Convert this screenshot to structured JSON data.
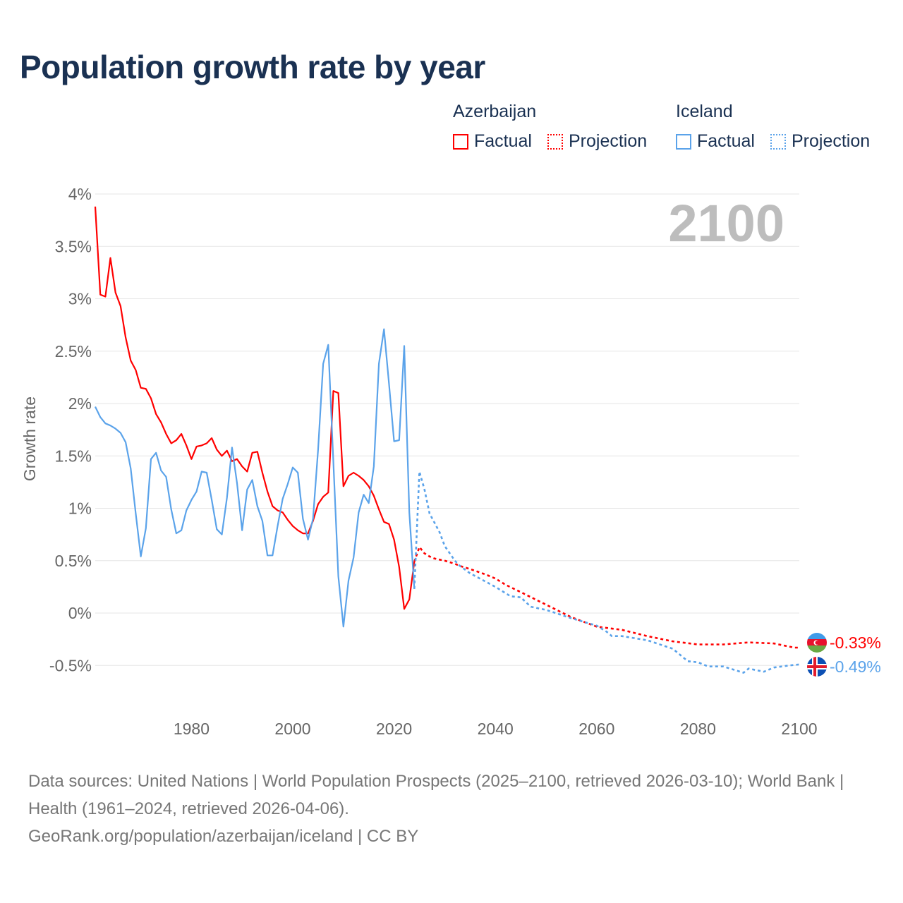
{
  "title": "Population growth rate by year",
  "legend": {
    "groups": [
      {
        "name": "Azerbaijan",
        "factual": "Factual",
        "projection": "Projection",
        "color": "#ff0000"
      },
      {
        "name": "Iceland",
        "factual": "Factual",
        "projection": "Projection",
        "color": "#5ba3ea"
      }
    ]
  },
  "year_label": "2100",
  "footer": {
    "sources": "Data sources: United Nations | World Population Prospects (2025–2100, retrieved 2026-03-10); World Bank | Health (1961–2024, retrieved 2026-04-06).",
    "credit": "GeoRank.org/population/azerbaijan/iceland | CC BY"
  },
  "chart_data": {
    "type": "line",
    "title": "Population growth rate by year",
    "xlabel": "",
    "ylabel": "Growth rate",
    "xlim": [
      1961,
      2100
    ],
    "ylim": [
      -0.85,
      4.1
    ],
    "x_ticks": [
      1980,
      2000,
      2020,
      2040,
      2060,
      2080,
      2100
    ],
    "y_ticks": [
      {
        "v": 4,
        "label": "4%"
      },
      {
        "v": 3.5,
        "label": "3.5%"
      },
      {
        "v": 3,
        "label": "3%"
      },
      {
        "v": 2.5,
        "label": "2.5%"
      },
      {
        "v": 2,
        "label": "2%"
      },
      {
        "v": 1.5,
        "label": "1.5%"
      },
      {
        "v": 1,
        "label": "1%"
      },
      {
        "v": 0.5,
        "label": "0.5%"
      },
      {
        "v": 0,
        "label": "0%"
      },
      {
        "v": -0.5,
        "label": "-0.5%"
      }
    ],
    "grid": true,
    "legend_position": "top-right",
    "series": [
      {
        "name": "Azerbaijan",
        "color": "#ff0000",
        "end_label": "-0.33%",
        "factual": {
          "x": [
            1961,
            1962,
            1963,
            1964,
            1965,
            1966,
            1967,
            1968,
            1969,
            1970,
            1971,
            1972,
            1973,
            1974,
            1975,
            1976,
            1977,
            1978,
            1979,
            1980,
            1981,
            1982,
            1983,
            1984,
            1985,
            1986,
            1987,
            1988,
            1989,
            1990,
            1991,
            1992,
            1993,
            1994,
            1995,
            1996,
            1997,
            1998,
            1999,
            2000,
            2001,
            2002,
            2003,
            2004,
            2005,
            2006,
            2007,
            2008,
            2009,
            2010,
            2011,
            2012,
            2013,
            2014,
            2015,
            2016,
            2017,
            2018,
            2019,
            2020,
            2021,
            2022,
            2023,
            2024
          ],
          "y": [
            3.88,
            3.04,
            3.02,
            3.39,
            3.06,
            2.93,
            2.63,
            2.41,
            2.32,
            2.15,
            2.14,
            2.05,
            1.9,
            1.82,
            1.71,
            1.62,
            1.65,
            1.71,
            1.6,
            1.47,
            1.59,
            1.6,
            1.62,
            1.67,
            1.56,
            1.5,
            1.55,
            1.45,
            1.47,
            1.4,
            1.35,
            1.53,
            1.54,
            1.34,
            1.16,
            1.02,
            0.98,
            0.96,
            0.89,
            0.83,
            0.79,
            0.76,
            0.76,
            0.88,
            1.04,
            1.11,
            1.15,
            2.12,
            2.1,
            1.21,
            1.31,
            1.34,
            1.31,
            1.27,
            1.21,
            1.12,
            0.99,
            0.87,
            0.85,
            0.7,
            0.44,
            0.04,
            0.13,
            0.49
          ]
        },
        "projection": {
          "x": [
            2024,
            2025,
            2026,
            2027,
            2028,
            2030,
            2032,
            2033,
            2035,
            2038,
            2040,
            2042,
            2045,
            2050,
            2055,
            2060,
            2065,
            2070,
            2075,
            2080,
            2085,
            2090,
            2095,
            2099,
            2100
          ],
          "y": [
            0.49,
            0.63,
            0.57,
            0.54,
            0.52,
            0.5,
            0.47,
            0.45,
            0.42,
            0.37,
            0.33,
            0.27,
            0.2,
            0.08,
            -0.04,
            -0.13,
            -0.16,
            -0.22,
            -0.27,
            -0.3,
            -0.3,
            -0.28,
            -0.29,
            -0.33,
            -0.33
          ]
        }
      },
      {
        "name": "Iceland",
        "color": "#5ba3ea",
        "end_label": "-0.49%",
        "factual": {
          "x": [
            1961,
            1962,
            1963,
            1964,
            1965,
            1966,
            1967,
            1968,
            1969,
            1970,
            1971,
            1972,
            1973,
            1974,
            1975,
            1976,
            1977,
            1978,
            1979,
            1980,
            1981,
            1982,
            1983,
            1984,
            1985,
            1986,
            1987,
            1988,
            1989,
            1990,
            1991,
            1992,
            1993,
            1994,
            1995,
            1996,
            1997,
            1998,
            1999,
            2000,
            2001,
            2002,
            2003,
            2004,
            2005,
            2006,
            2007,
            2008,
            2009,
            2010,
            2011,
            2012,
            2013,
            2014,
            2015,
            2016,
            2017,
            2018,
            2019,
            2020,
            2021,
            2022,
            2023,
            2024
          ],
          "y": [
            1.97,
            1.87,
            1.81,
            1.79,
            1.76,
            1.72,
            1.63,
            1.38,
            0.95,
            0.54,
            0.81,
            1.47,
            1.53,
            1.36,
            1.3,
            0.99,
            0.76,
            0.79,
            0.98,
            1.08,
            1.16,
            1.35,
            1.34,
            1.08,
            0.8,
            0.75,
            1.1,
            1.58,
            1.24,
            0.79,
            1.18,
            1.27,
            1.02,
            0.88,
            0.55,
            0.55,
            0.83,
            1.09,
            1.23,
            1.39,
            1.34,
            0.9,
            0.7,
            0.9,
            1.56,
            2.38,
            2.56,
            1.45,
            0.35,
            -0.13,
            0.31,
            0.53,
            0.96,
            1.13,
            1.05,
            1.4,
            2.38,
            2.71,
            2.19,
            1.64,
            1.65,
            2.55,
            0.96,
            0.23
          ]
        },
        "projection": {
          "x": [
            2024,
            2025,
            2026,
            2027,
            2028,
            2029,
            2030,
            2031,
            2032,
            2033,
            2035,
            2040,
            2043,
            2045,
            2047,
            2050,
            2055,
            2060,
            2062,
            2063,
            2065,
            2070,
            2075,
            2078,
            2080,
            2082,
            2085,
            2089,
            2090,
            2093,
            2095,
            2098,
            2100
          ],
          "y": [
            0.23,
            1.35,
            1.18,
            0.95,
            0.86,
            0.77,
            0.64,
            0.57,
            0.5,
            0.45,
            0.38,
            0.25,
            0.16,
            0.15,
            0.06,
            0.03,
            -0.05,
            -0.12,
            -0.18,
            -0.22,
            -0.22,
            -0.26,
            -0.34,
            -0.46,
            -0.47,
            -0.51,
            -0.51,
            -0.57,
            -0.53,
            -0.56,
            -0.52,
            -0.5,
            -0.49
          ]
        }
      }
    ]
  }
}
